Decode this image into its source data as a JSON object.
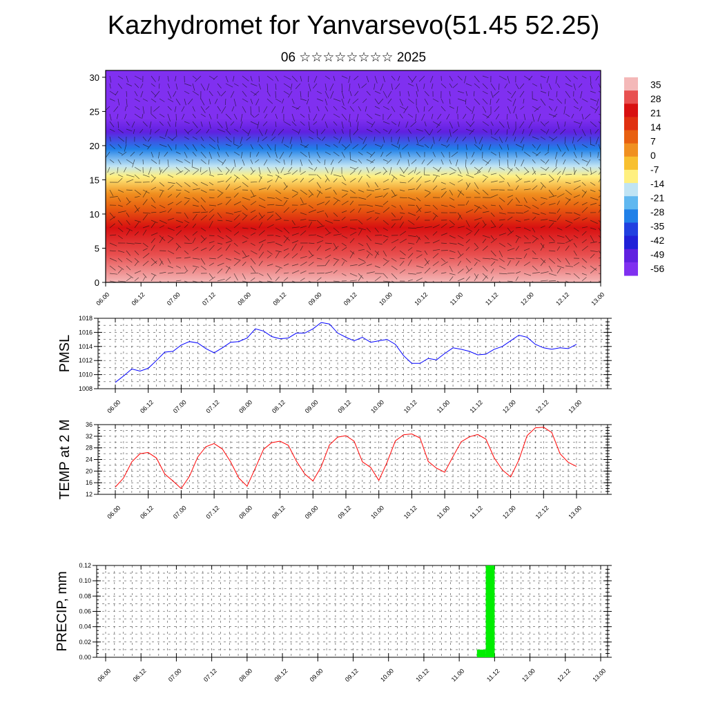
{
  "header": {
    "title": "Kazhydromet for Yanvarsevo(51.45 52.25)",
    "subtitle": "06 ☆☆☆☆☆☆☆☆ 2025"
  },
  "time_ticks": [
    "06.00",
    "06.12",
    "07.00",
    "07.12",
    "08.00",
    "08.12",
    "09.00",
    "09.12",
    "10.00",
    "10.12",
    "11.00",
    "11.12",
    "12.00",
    "12.12",
    "13.00"
  ],
  "colorbar": {
    "labels": [
      "35",
      "28",
      "21",
      "14",
      "7",
      "0",
      "-7",
      "-14",
      "-21",
      "-28",
      "-35",
      "-42",
      "-49",
      "-56"
    ],
    "colors": [
      "#f4b8b8",
      "#e85050",
      "#d81010",
      "#e03010",
      "#e86010",
      "#f09020",
      "#f8c030",
      "#fff080",
      "#c0e4f4",
      "#60b8f0",
      "#2080e8",
      "#2040e0",
      "#2020d8",
      "#6020e0",
      "#8030f0"
    ]
  },
  "chart_data": [
    {
      "type": "heatmap",
      "name": "cross-section",
      "xlabel": "",
      "ylabel": "",
      "x_ticks": [
        "06.00",
        "06.12",
        "07.00",
        "07.12",
        "08.00",
        "08.12",
        "09.00",
        "09.12",
        "10.00",
        "10.12",
        "11.00",
        "11.12",
        "12.00",
        "12.12",
        "13.00"
      ],
      "ylim": [
        0,
        31
      ],
      "y_ticks": [
        0,
        5,
        10,
        15,
        20,
        25,
        30
      ],
      "value_range": [
        -56,
        35
      ],
      "levels": [
        {
          "height": 0,
          "value": 31
        },
        {
          "height": 4,
          "value": 26
        },
        {
          "height": 8,
          "value": 18
        },
        {
          "height": 11,
          "value": 8
        },
        {
          "height": 13,
          "value": 0
        },
        {
          "height": 15.5,
          "value": -10
        },
        {
          "height": 17,
          "value": -18
        },
        {
          "height": 19.5,
          "value": -30
        },
        {
          "height": 22,
          "value": -45
        },
        {
          "height": 24,
          "value": -52
        },
        {
          "height": 31,
          "value": -56
        }
      ]
    },
    {
      "type": "line",
      "name": "pmsl",
      "ylabel": "PMSL",
      "ylim": [
        1008,
        1018
      ],
      "y_ticks": [
        1008,
        1010,
        1012,
        1014,
        1016,
        1018
      ],
      "x_ticks": [
        "06.00",
        "06.12",
        "07.00",
        "07.12",
        "08.00",
        "08.12",
        "09.00",
        "09.12",
        "10.00",
        "10.12",
        "11.00",
        "11.12",
        "12.00",
        "12.12",
        "13.00"
      ],
      "x_step_hours": 3,
      "color": "#0000ff",
      "values": [
        1008.9,
        1009.8,
        1010.8,
        1010.5,
        1010.9,
        1012.0,
        1013.2,
        1013.3,
        1014.2,
        1014.7,
        1014.5,
        1013.7,
        1013.1,
        1013.8,
        1014.6,
        1014.7,
        1015.2,
        1016.5,
        1016.2,
        1015.4,
        1015.1,
        1015.2,
        1015.9,
        1015.9,
        1016.5,
        1017.4,
        1017.2,
        1015.9,
        1015.3,
        1014.8,
        1015.3,
        1014.6,
        1014.8,
        1015.0,
        1014.3,
        1012.7,
        1011.6,
        1011.6,
        1012.3,
        1012.1,
        1013.0,
        1013.8,
        1013.6,
        1013.3,
        1012.8,
        1012.9,
        1013.6,
        1014.0,
        1014.8,
        1015.6,
        1015.3,
        1014.3,
        1013.8,
        1013.6,
        1013.8,
        1013.7,
        1014.3
      ]
    },
    {
      "type": "line",
      "name": "temp",
      "ylabel": "TEMP at 2 M",
      "ylim": [
        12,
        36
      ],
      "y_ticks": [
        12,
        16,
        20,
        24,
        28,
        32,
        36
      ],
      "x_ticks": [
        "06.00",
        "06.12",
        "07.00",
        "07.12",
        "08.00",
        "08.12",
        "09.00",
        "09.12",
        "10.00",
        "10.12",
        "11.00",
        "11.12",
        "12.00",
        "12.12",
        "13.00"
      ],
      "x_step_hours": 3,
      "color": "#ff0000",
      "values": [
        14.5,
        17.6,
        23.2,
        26.0,
        26.4,
        24.5,
        19.0,
        16.6,
        14.0,
        18.2,
        24.8,
        28.4,
        29.5,
        27.6,
        23.2,
        17.6,
        14.8,
        21.0,
        27.5,
        29.8,
        30.3,
        28.9,
        23.4,
        19.0,
        16.6,
        21.5,
        29.0,
        31.7,
        32.2,
        30.3,
        23.2,
        21.3,
        16.8,
        23.0,
        30.4,
        32.5,
        32.8,
        31.4,
        23.3,
        21.0,
        19.6,
        25.0,
        30.1,
        31.8,
        32.6,
        31.0,
        24.6,
        20.4,
        18.0,
        23.8,
        32.2,
        34.9,
        35.1,
        33.3,
        26.0,
        23.0,
        21.6
      ]
    },
    {
      "type": "bar",
      "name": "precip",
      "ylabel": "PRECIP, mm",
      "ylim": [
        0,
        0.12
      ],
      "y_ticks": [
        "0.00",
        "0.02",
        "0.04",
        "0.06",
        "0.08",
        "0.10",
        "0.12"
      ],
      "x_ticks": [
        "06.00",
        "06.12",
        "07.00",
        "07.12",
        "08.00",
        "08.12",
        "09.00",
        "09.12",
        "10.00",
        "10.12",
        "11.00",
        "11.12",
        "12.00",
        "12.12",
        "13.00"
      ],
      "color": "#00ee00",
      "bars": [
        {
          "time": "11.06",
          "value": 0.01
        },
        {
          "time": "11.09",
          "value": 0.12
        }
      ]
    }
  ]
}
